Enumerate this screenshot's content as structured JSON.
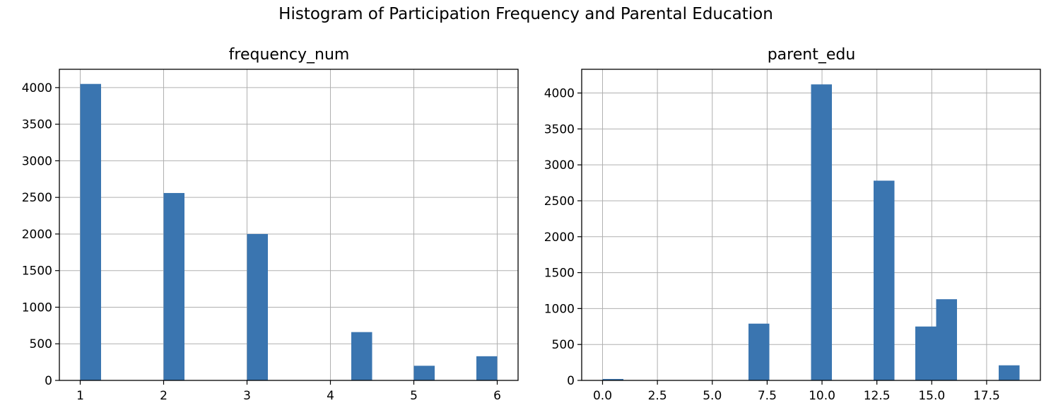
{
  "figure": {
    "title": "Histogram of Participation Frequency and Parental Education",
    "bar_color": "#3a75b0",
    "grid": true
  },
  "chart_data": [
    {
      "type": "bar",
      "title": "frequency_num",
      "xlabel": "",
      "ylabel": "",
      "xlim": [
        0.75,
        6.25
      ],
      "ylim": [
        0,
        4250
      ],
      "xticks": [
        1,
        2,
        3,
        4,
        5,
        6
      ],
      "xtick_labels": [
        "1",
        "2",
        "3",
        "4",
        "5",
        "6"
      ],
      "yticks": [
        0,
        500,
        1000,
        1500,
        2000,
        2500,
        3000,
        3500,
        4000
      ],
      "ytick_labels": [
        "0",
        "500",
        "1000",
        "1500",
        "2000",
        "2500",
        "3000",
        "3500",
        "4000"
      ],
      "bins": [
        {
          "x0": 1.0,
          "x1": 1.25,
          "value": 4050
        },
        {
          "x0": 2.0,
          "x1": 2.25,
          "value": 2560
        },
        {
          "x0": 3.0,
          "x1": 3.25,
          "value": 2000
        },
        {
          "x0": 4.25,
          "x1": 4.5,
          "value": 660
        },
        {
          "x0": 5.0,
          "x1": 5.25,
          "value": 200
        },
        {
          "x0": 5.75,
          "x1": 6.0,
          "value": 330
        }
      ]
    },
    {
      "type": "bar",
      "title": "parent_edu",
      "xlabel": "",
      "ylabel": "",
      "xlim": [
        -0.95,
        19.95
      ],
      "ylim": [
        0,
        4330
      ],
      "xticks": [
        0,
        2.5,
        5,
        7.5,
        10,
        12.5,
        15,
        17.5
      ],
      "xtick_labels": [
        "0.0",
        "2.5",
        "5.0",
        "7.5",
        "10.0",
        "12.5",
        "15.0",
        "17.5"
      ],
      "yticks": [
        0,
        500,
        1000,
        1500,
        2000,
        2500,
        3000,
        3500,
        4000
      ],
      "ytick_labels": [
        "0",
        "500",
        "1000",
        "1500",
        "2000",
        "2500",
        "3000",
        "3500",
        "4000"
      ],
      "bins": [
        {
          "x0": 0.0,
          "x1": 0.95,
          "value": 20
        },
        {
          "x0": 6.65,
          "x1": 7.6,
          "value": 790
        },
        {
          "x0": 9.5,
          "x1": 10.45,
          "value": 4120
        },
        {
          "x0": 12.35,
          "x1": 13.3,
          "value": 2780
        },
        {
          "x0": 14.25,
          "x1": 15.2,
          "value": 750
        },
        {
          "x0": 15.2,
          "x1": 16.15,
          "value": 1130
        },
        {
          "x0": 18.05,
          "x1": 19.0,
          "value": 210
        }
      ]
    }
  ]
}
